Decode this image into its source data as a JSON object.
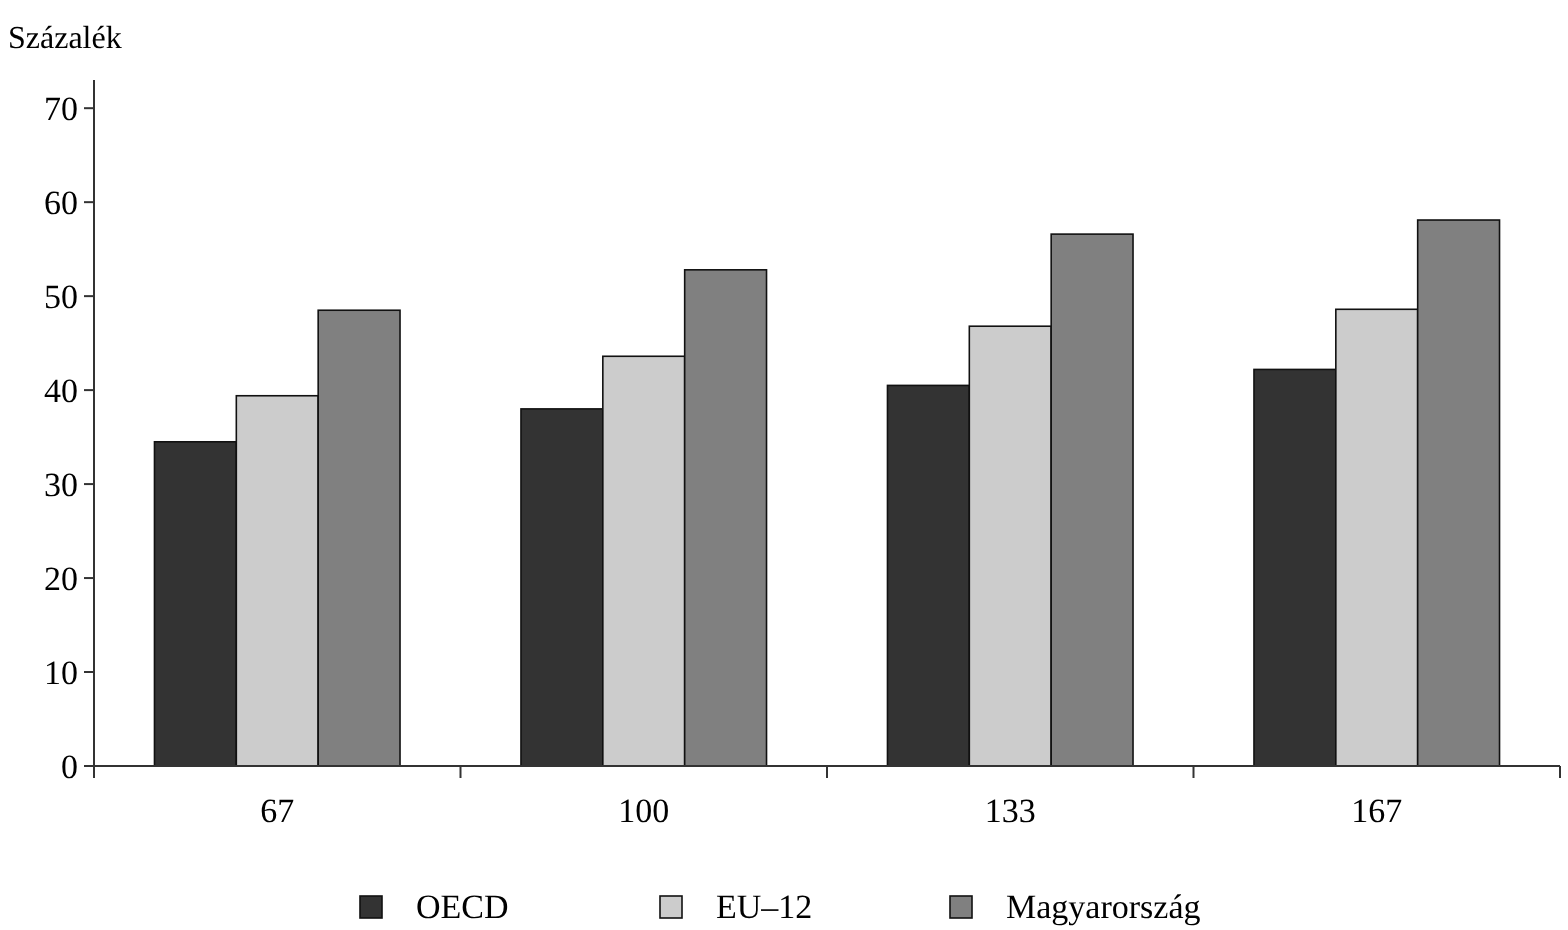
{
  "chart_data": {
    "type": "bar",
    "ylabel": "Százalék",
    "categories": [
      "67",
      "100",
      "133",
      "167"
    ],
    "series": [
      {
        "name": "OECD",
        "color": "#333333",
        "values": [
          34.5,
          38,
          40.5,
          42.2
        ]
      },
      {
        "name": "EU–12",
        "color": "#cccccc",
        "values": [
          39.4,
          43.6,
          46.8,
          48.6
        ]
      },
      {
        "name": "Magyarország",
        "color": "#808080",
        "values": [
          48.5,
          52.8,
          56.6,
          58.1
        ]
      }
    ],
    "ylim": [
      0,
      73
    ],
    "yticks": [
      0,
      10,
      20,
      30,
      40,
      50,
      60,
      70
    ],
    "grid": false,
    "legend": "bottom"
  }
}
